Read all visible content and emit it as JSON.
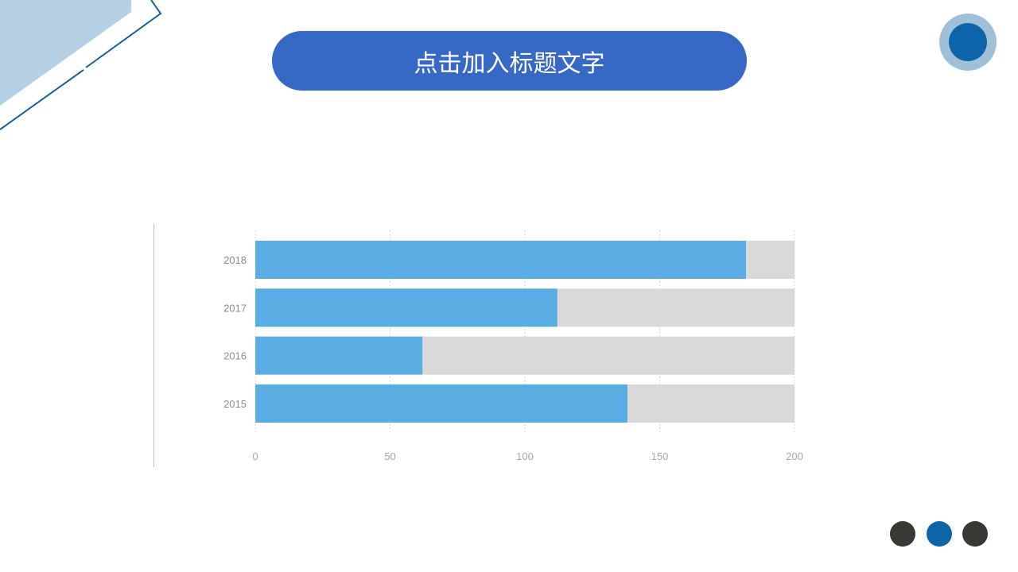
{
  "slide": {
    "title": "点击加入标题文字",
    "colors": {
      "accent": "#3768c4",
      "bar": "#5aade3",
      "track": "#d9d9d9",
      "deco_light": "#b6d0e3",
      "deco_dark": "#0e64a8",
      "dot_dark": "#3a3835"
    }
  },
  "chart_data": {
    "type": "bar",
    "orientation": "horizontal",
    "categories": [
      "2018",
      "2017",
      "2016",
      "2015"
    ],
    "values": [
      182,
      112,
      62,
      138
    ],
    "background_bar_value": 200,
    "xlim": [
      0,
      200
    ],
    "xticks": [
      "0",
      "50",
      "100",
      "150",
      "200"
    ],
    "grid": true,
    "title": "",
    "xlabel": "",
    "ylabel": ""
  }
}
